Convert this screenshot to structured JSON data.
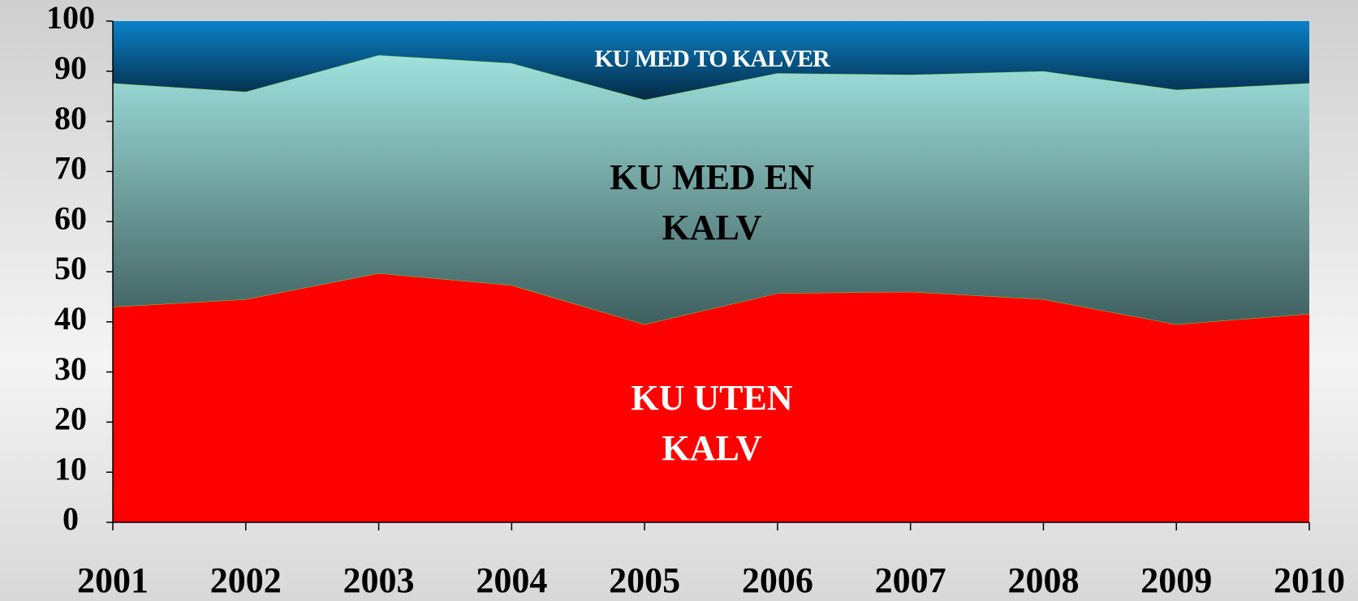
{
  "chart_data": {
    "type": "stacked_area",
    "categories": [
      "2001",
      "2002",
      "2003",
      "2004",
      "2005",
      "2006",
      "2007",
      "2008",
      "2009",
      "2010"
    ],
    "series": [
      {
        "name": "KU UTEN KALV",
        "color": "#ff0000",
        "color_bottom": "#ff0000",
        "values": [
          43,
          44.5,
          49.7,
          47.3,
          39.5,
          45.7,
          46,
          44.5,
          39.5,
          41.6
        ]
      },
      {
        "name": "KU MED EN KALV",
        "color": "#a0e2de",
        "color_bottom": "#3f5f5f",
        "values": [
          44.6,
          41.4,
          43.5,
          44.3,
          44.8,
          43.9,
          43.3,
          45.5,
          46.8,
          46.0
        ]
      },
      {
        "name": "KU MED TO KALVER",
        "color": "#0a82c8",
        "color_bottom": "#052a45",
        "values": [
          12.4,
          14.1,
          6.8,
          8.4,
          15.7,
          10.4,
          10.7,
          10,
          13.7,
          12.4
        ]
      }
    ],
    "ylim": [
      0,
      100
    ],
    "yticks": [
      0,
      10,
      20,
      30,
      40,
      50,
      60,
      70,
      80,
      90,
      100
    ]
  }
}
